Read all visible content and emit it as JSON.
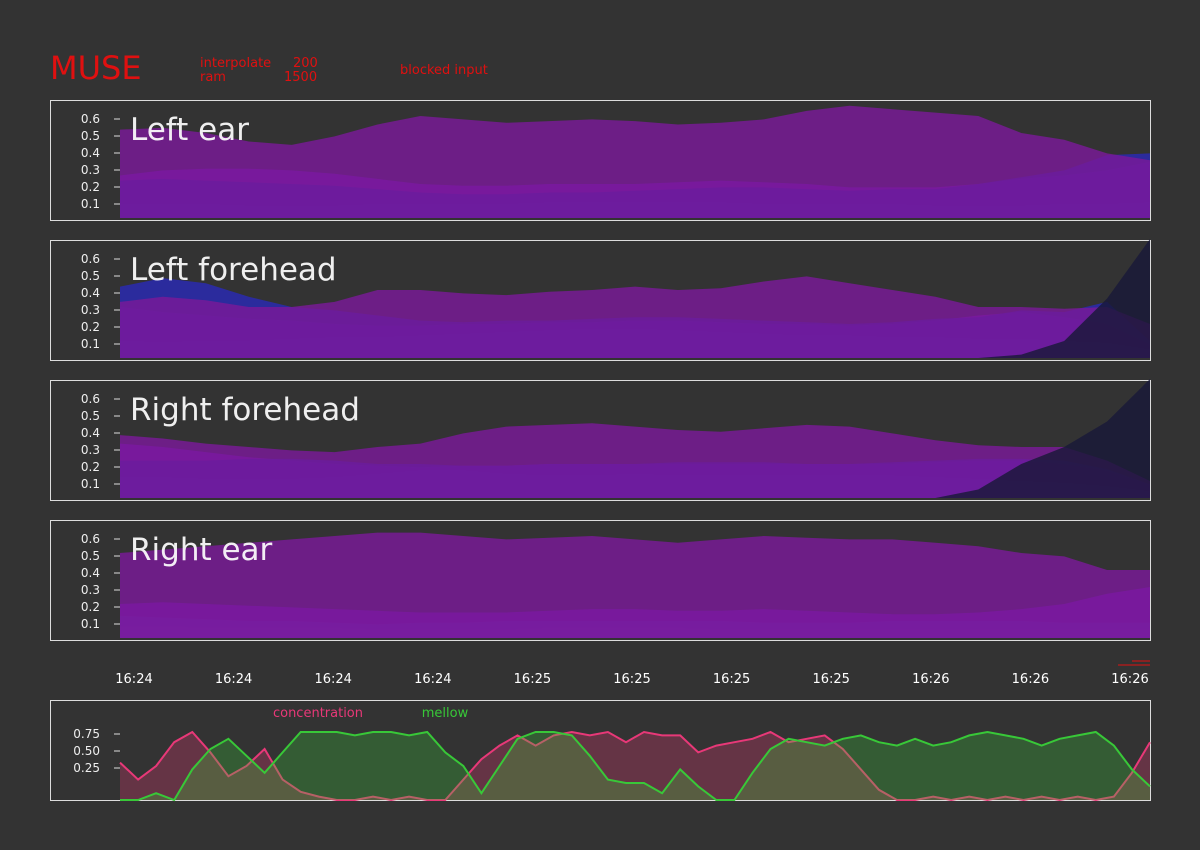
{
  "header": {
    "title": "MUSE",
    "interpolate_label": "interpolate",
    "interpolate_value": "200",
    "ram_label": "ram",
    "ram_value": "1500",
    "status": "blocked input",
    "text_color": "#e01010"
  },
  "chart_data": [
    {
      "type": "area",
      "title": "Left ear",
      "yticks": [
        "0.1",
        "0.2",
        "0.3",
        "0.4",
        "0.5",
        "0.6"
      ],
      "ylim": [
        0,
        0.7
      ],
      "colors": [
        "#e8401c",
        "#2aa0a8",
        "#7b16c8",
        "#2a2ab4",
        "#7a1a98"
      ],
      "series": [
        {
          "values": [
            0.02,
            0.02,
            0.02,
            0.02,
            0.02,
            0.02,
            0.02,
            0.02,
            0.02,
            0.02,
            0.02,
            0.02,
            0.02,
            0.02,
            0.02,
            0.02,
            0.02,
            0.02,
            0.02,
            0.02,
            0.03,
            0.03,
            0.03,
            0.04,
            0.04
          ]
        },
        {
          "values": [
            0.08,
            0.08,
            0.08,
            0.07,
            0.07,
            0.07,
            0.08,
            0.08,
            0.08,
            0.08,
            0.09,
            0.09,
            0.09,
            0.09,
            0.09,
            0.08,
            0.08,
            0.08,
            0.08,
            0.07,
            0.07,
            0.07,
            0.08,
            0.08,
            0.09
          ]
        },
        {
          "values": [
            0.25,
            0.28,
            0.29,
            0.29,
            0.28,
            0.26,
            0.23,
            0.2,
            0.19,
            0.19,
            0.2,
            0.2,
            0.2,
            0.21,
            0.22,
            0.21,
            0.2,
            0.18,
            0.18,
            0.18,
            0.2,
            0.23,
            0.25,
            0.28,
            0.33
          ]
        },
        {
          "values": [
            0.22,
            0.23,
            0.22,
            0.21,
            0.2,
            0.19,
            0.17,
            0.15,
            0.14,
            0.14,
            0.15,
            0.15,
            0.16,
            0.17,
            0.18,
            0.18,
            0.17,
            0.16,
            0.17,
            0.17,
            0.2,
            0.24,
            0.28,
            0.37,
            0.38
          ]
        },
        {
          "values": [
            0.52,
            0.53,
            0.5,
            0.45,
            0.43,
            0.48,
            0.55,
            0.6,
            0.58,
            0.56,
            0.57,
            0.58,
            0.57,
            0.55,
            0.56,
            0.58,
            0.63,
            0.66,
            0.64,
            0.62,
            0.6,
            0.5,
            0.46,
            0.38,
            0.34
          ]
        }
      ]
    },
    {
      "type": "area",
      "title": "Left forehead",
      "yticks": [
        "0.1",
        "0.2",
        "0.3",
        "0.4",
        "0.5",
        "0.6"
      ],
      "ylim": [
        0,
        0.7
      ],
      "colors": [
        "#e8401c",
        "#2aa0a8",
        "#7b16c8",
        "#2a2ab4",
        "#7a1a98",
        "#181838"
      ],
      "series": [
        {
          "values": [
            0.07,
            0.06,
            0.07,
            0.07,
            0.07,
            0.08,
            0.09,
            0.09,
            0.09,
            0.09,
            0.09,
            0.08,
            0.08,
            0.08,
            0.08,
            0.08,
            0.08,
            0.08,
            0.08,
            0.08,
            0.07,
            0.07,
            0.07,
            0.06,
            0.02
          ]
        },
        {
          "values": [
            0.1,
            0.09,
            0.1,
            0.1,
            0.11,
            0.12,
            0.12,
            0.13,
            0.14,
            0.15,
            0.16,
            0.17,
            0.17,
            0.16,
            0.15,
            0.14,
            0.13,
            0.13,
            0.12,
            0.12,
            0.11,
            0.11,
            0.1,
            0.09,
            0.05
          ]
        },
        {
          "values": [
            0.3,
            0.27,
            0.25,
            0.23,
            0.22,
            0.2,
            0.19,
            0.19,
            0.2,
            0.2,
            0.21,
            0.21,
            0.22,
            0.22,
            0.21,
            0.2,
            0.2,
            0.19,
            0.2,
            0.22,
            0.25,
            0.27,
            0.24,
            0.2,
            0.08
          ]
        },
        {
          "values": [
            0.42,
            0.47,
            0.44,
            0.36,
            0.3,
            0.28,
            0.25,
            0.22,
            0.21,
            0.22,
            0.22,
            0.23,
            0.24,
            0.24,
            0.23,
            0.22,
            0.21,
            0.2,
            0.21,
            0.23,
            0.24,
            0.28,
            0.27,
            0.33,
            0.1
          ]
        },
        {
          "values": [
            0.33,
            0.36,
            0.34,
            0.3,
            0.3,
            0.33,
            0.4,
            0.4,
            0.38,
            0.37,
            0.39,
            0.4,
            0.42,
            0.4,
            0.41,
            0.45,
            0.48,
            0.44,
            0.4,
            0.36,
            0.3,
            0.3,
            0.29,
            0.3,
            0.2
          ]
        },
        {
          "values": [
            0.0,
            0.0,
            0.0,
            0.0,
            0.0,
            0.0,
            0.0,
            0.0,
            0.0,
            0.0,
            0.0,
            0.0,
            0.0,
            0.0,
            0.0,
            0.0,
            0.0,
            0.0,
            0.0,
            0.0,
            0.0,
            0.02,
            0.1,
            0.35,
            0.7
          ]
        }
      ]
    },
    {
      "type": "area",
      "title": "Right forehead",
      "yticks": [
        "0.1",
        "0.2",
        "0.3",
        "0.4",
        "0.5",
        "0.6"
      ],
      "ylim": [
        0,
        0.7
      ],
      "colors": [
        "#e8401c",
        "#2aa0a8",
        "#7b16c8",
        "#2a2ab4",
        "#7a1a98",
        "#181838"
      ],
      "series": [
        {
          "values": [
            0.1,
            0.1,
            0.09,
            0.09,
            0.09,
            0.1,
            0.12,
            0.13,
            0.12,
            0.1,
            0.1,
            0.1,
            0.11,
            0.1,
            0.1,
            0.1,
            0.1,
            0.1,
            0.1,
            0.09,
            0.09,
            0.08,
            0.07,
            0.05,
            0.02
          ]
        },
        {
          "values": [
            0.12,
            0.12,
            0.11,
            0.11,
            0.11,
            0.12,
            0.14,
            0.16,
            0.16,
            0.14,
            0.13,
            0.13,
            0.14,
            0.13,
            0.13,
            0.13,
            0.13,
            0.13,
            0.13,
            0.12,
            0.11,
            0.1,
            0.09,
            0.07,
            0.04
          ]
        },
        {
          "values": [
            0.32,
            0.3,
            0.27,
            0.24,
            0.22,
            0.2,
            0.19,
            0.18,
            0.19,
            0.19,
            0.2,
            0.2,
            0.2,
            0.2,
            0.2,
            0.2,
            0.2,
            0.2,
            0.2,
            0.21,
            0.22,
            0.22,
            0.2,
            0.16,
            0.08
          ]
        },
        {
          "values": [
            0.22,
            0.22,
            0.22,
            0.23,
            0.23,
            0.22,
            0.2,
            0.2,
            0.19,
            0.19,
            0.2,
            0.2,
            0.2,
            0.21,
            0.21,
            0.21,
            0.2,
            0.2,
            0.21,
            0.22,
            0.23,
            0.23,
            0.22,
            0.17,
            0.08
          ]
        },
        {
          "values": [
            0.37,
            0.35,
            0.32,
            0.3,
            0.28,
            0.27,
            0.3,
            0.32,
            0.38,
            0.42,
            0.43,
            0.44,
            0.42,
            0.4,
            0.39,
            0.41,
            0.43,
            0.42,
            0.38,
            0.34,
            0.31,
            0.3,
            0.3,
            0.22,
            0.1
          ]
        },
        {
          "values": [
            0.0,
            0.0,
            0.0,
            0.0,
            0.0,
            0.0,
            0.0,
            0.0,
            0.0,
            0.0,
            0.0,
            0.0,
            0.0,
            0.0,
            0.0,
            0.0,
            0.0,
            0.0,
            0.0,
            0.0,
            0.05,
            0.2,
            0.3,
            0.45,
            0.7
          ]
        }
      ]
    },
    {
      "type": "area",
      "title": "Right ear",
      "yticks": [
        "0.1",
        "0.2",
        "0.3",
        "0.4",
        "0.5",
        "0.6"
      ],
      "ylim": [
        0,
        0.7
      ],
      "colors": [
        "#e8401c",
        "#2aa0a8",
        "#7b16c8",
        "#2a2ab4",
        "#7a1a98"
      ],
      "series": [
        {
          "values": [
            0.07,
            0.07,
            0.06,
            0.06,
            0.06,
            0.06,
            0.05,
            0.05,
            0.05,
            0.05,
            0.06,
            0.06,
            0.06,
            0.06,
            0.05,
            0.05,
            0.05,
            0.05,
            0.05,
            0.05,
            0.05,
            0.05,
            0.05,
            0.05,
            0.05
          ]
        },
        {
          "values": [
            0.13,
            0.12,
            0.11,
            0.1,
            0.1,
            0.09,
            0.08,
            0.09,
            0.09,
            0.1,
            0.1,
            0.1,
            0.1,
            0.1,
            0.1,
            0.09,
            0.09,
            0.09,
            0.1,
            0.1,
            0.1,
            0.1,
            0.09,
            0.09,
            0.09
          ]
        },
        {
          "values": [
            0.2,
            0.21,
            0.2,
            0.19,
            0.18,
            0.17,
            0.16,
            0.15,
            0.15,
            0.15,
            0.16,
            0.17,
            0.17,
            0.16,
            0.16,
            0.17,
            0.16,
            0.15,
            0.14,
            0.14,
            0.15,
            0.17,
            0.2,
            0.26,
            0.3
          ]
        },
        {
          "values": [
            0.0,
            0.0,
            0.0,
            0.0,
            0.0,
            0.0,
            0.0,
            0.0,
            0.0,
            0.0,
            0.0,
            0.0,
            0.0,
            0.0,
            0.0,
            0.0,
            0.0,
            0.0,
            0.0,
            0.0,
            0.0,
            0.0,
            0.0,
            0.0,
            0.0
          ]
        },
        {
          "values": [
            0.5,
            0.52,
            0.54,
            0.56,
            0.58,
            0.6,
            0.62,
            0.62,
            0.6,
            0.58,
            0.59,
            0.6,
            0.58,
            0.56,
            0.58,
            0.6,
            0.59,
            0.58,
            0.58,
            0.56,
            0.54,
            0.5,
            0.48,
            0.4,
            0.4
          ]
        }
      ]
    },
    {
      "type": "area",
      "title": "",
      "yticks": [
        "0.25",
        "0.50",
        "0.75"
      ],
      "ylim": [
        0,
        1
      ],
      "colors": [
        "#e83878",
        "#38c838"
      ],
      "series": [
        {
          "name": "concentration",
          "values": [
            0.55,
            0.3,
            0.5,
            0.85,
            1.0,
            0.7,
            0.35,
            0.5,
            0.75,
            0.3,
            0.12,
            0.05,
            0.0,
            0.0,
            0.05,
            0.0,
            0.05,
            0.0,
            0.0,
            0.3,
            0.6,
            0.8,
            0.95,
            0.8,
            0.95,
            1.0,
            0.95,
            1.0,
            0.85,
            1.0,
            0.95,
            0.95,
            0.7,
            0.8,
            0.85,
            0.9,
            1.0,
            0.85,
            0.9,
            0.95,
            0.75,
            0.45,
            0.15,
            0.0,
            0.0,
            0.05,
            0.0,
            0.05,
            0.0,
            0.05,
            0.0,
            0.05,
            0.0,
            0.05,
            0.0,
            0.05,
            0.4,
            0.85
          ]
        },
        {
          "name": "mellow",
          "values": [
            0.0,
            0.0,
            0.1,
            0.0,
            0.45,
            0.75,
            0.9,
            0.65,
            0.4,
            0.7,
            1.0,
            1.0,
            1.0,
            0.95,
            1.0,
            1.0,
            0.95,
            1.0,
            0.7,
            0.5,
            0.1,
            0.5,
            0.9,
            1.0,
            1.0,
            0.95,
            0.65,
            0.3,
            0.25,
            0.25,
            0.1,
            0.45,
            0.2,
            0.0,
            0.0,
            0.4,
            0.75,
            0.9,
            0.85,
            0.8,
            0.9,
            0.95,
            0.85,
            0.8,
            0.9,
            0.8,
            0.85,
            0.95,
            1.0,
            0.95,
            0.9,
            0.8,
            0.9,
            0.95,
            1.0,
            0.8,
            0.45,
            0.2
          ]
        }
      ]
    }
  ],
  "x_ticks": [
    "16:24",
    "16:24",
    "16:24",
    "16:24",
    "16:25",
    "16:25",
    "16:25",
    "16:25",
    "16:26",
    "16:26",
    "16:26"
  ]
}
